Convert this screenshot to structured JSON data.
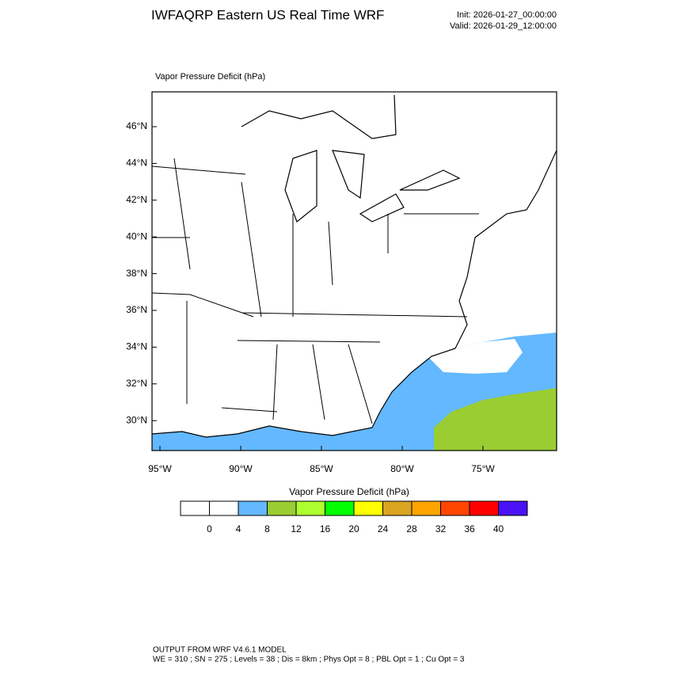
{
  "header": {
    "title": "IWFAQRP Eastern US Real Time WRF",
    "init": "Init: 2026-01-27_00:00:00",
    "valid": "Valid: 2026-01-29_12:00:00"
  },
  "map": {
    "subtitle": "Vapor Pressure Deficit   (hPa)",
    "lat_labels": [
      "46°N",
      "44°N",
      "42°N",
      "40°N",
      "38°N",
      "36°N",
      "34°N",
      "32°N",
      "30°N"
    ],
    "lon_labels": [
      "95°W",
      "90°W",
      "85°W",
      "80°W",
      "75°W"
    ]
  },
  "colorbar": {
    "title": "Vapor Pressure Deficit  (hPa)",
    "colors": [
      "#ffffff",
      "#ffffff",
      "#63b8ff",
      "#9acd32",
      "#adff2f",
      "#00ff00",
      "#ffff00",
      "#daa520",
      "#ffa500",
      "#ff4500",
      "#ff0000",
      "#4b12f5"
    ],
    "labels": [
      0,
      4,
      8,
      12,
      16,
      20,
      24,
      28,
      32,
      36,
      40
    ]
  },
  "footer": {
    "line1": "OUTPUT FROM WRF V4.6.1 MODEL",
    "line2": "WE = 310 ; SN = 275 ; Levels = 38 ; Dis = 8km ; Phys Opt = 8 ; PBL Opt = 1 ; Cu Opt = 3"
  }
}
